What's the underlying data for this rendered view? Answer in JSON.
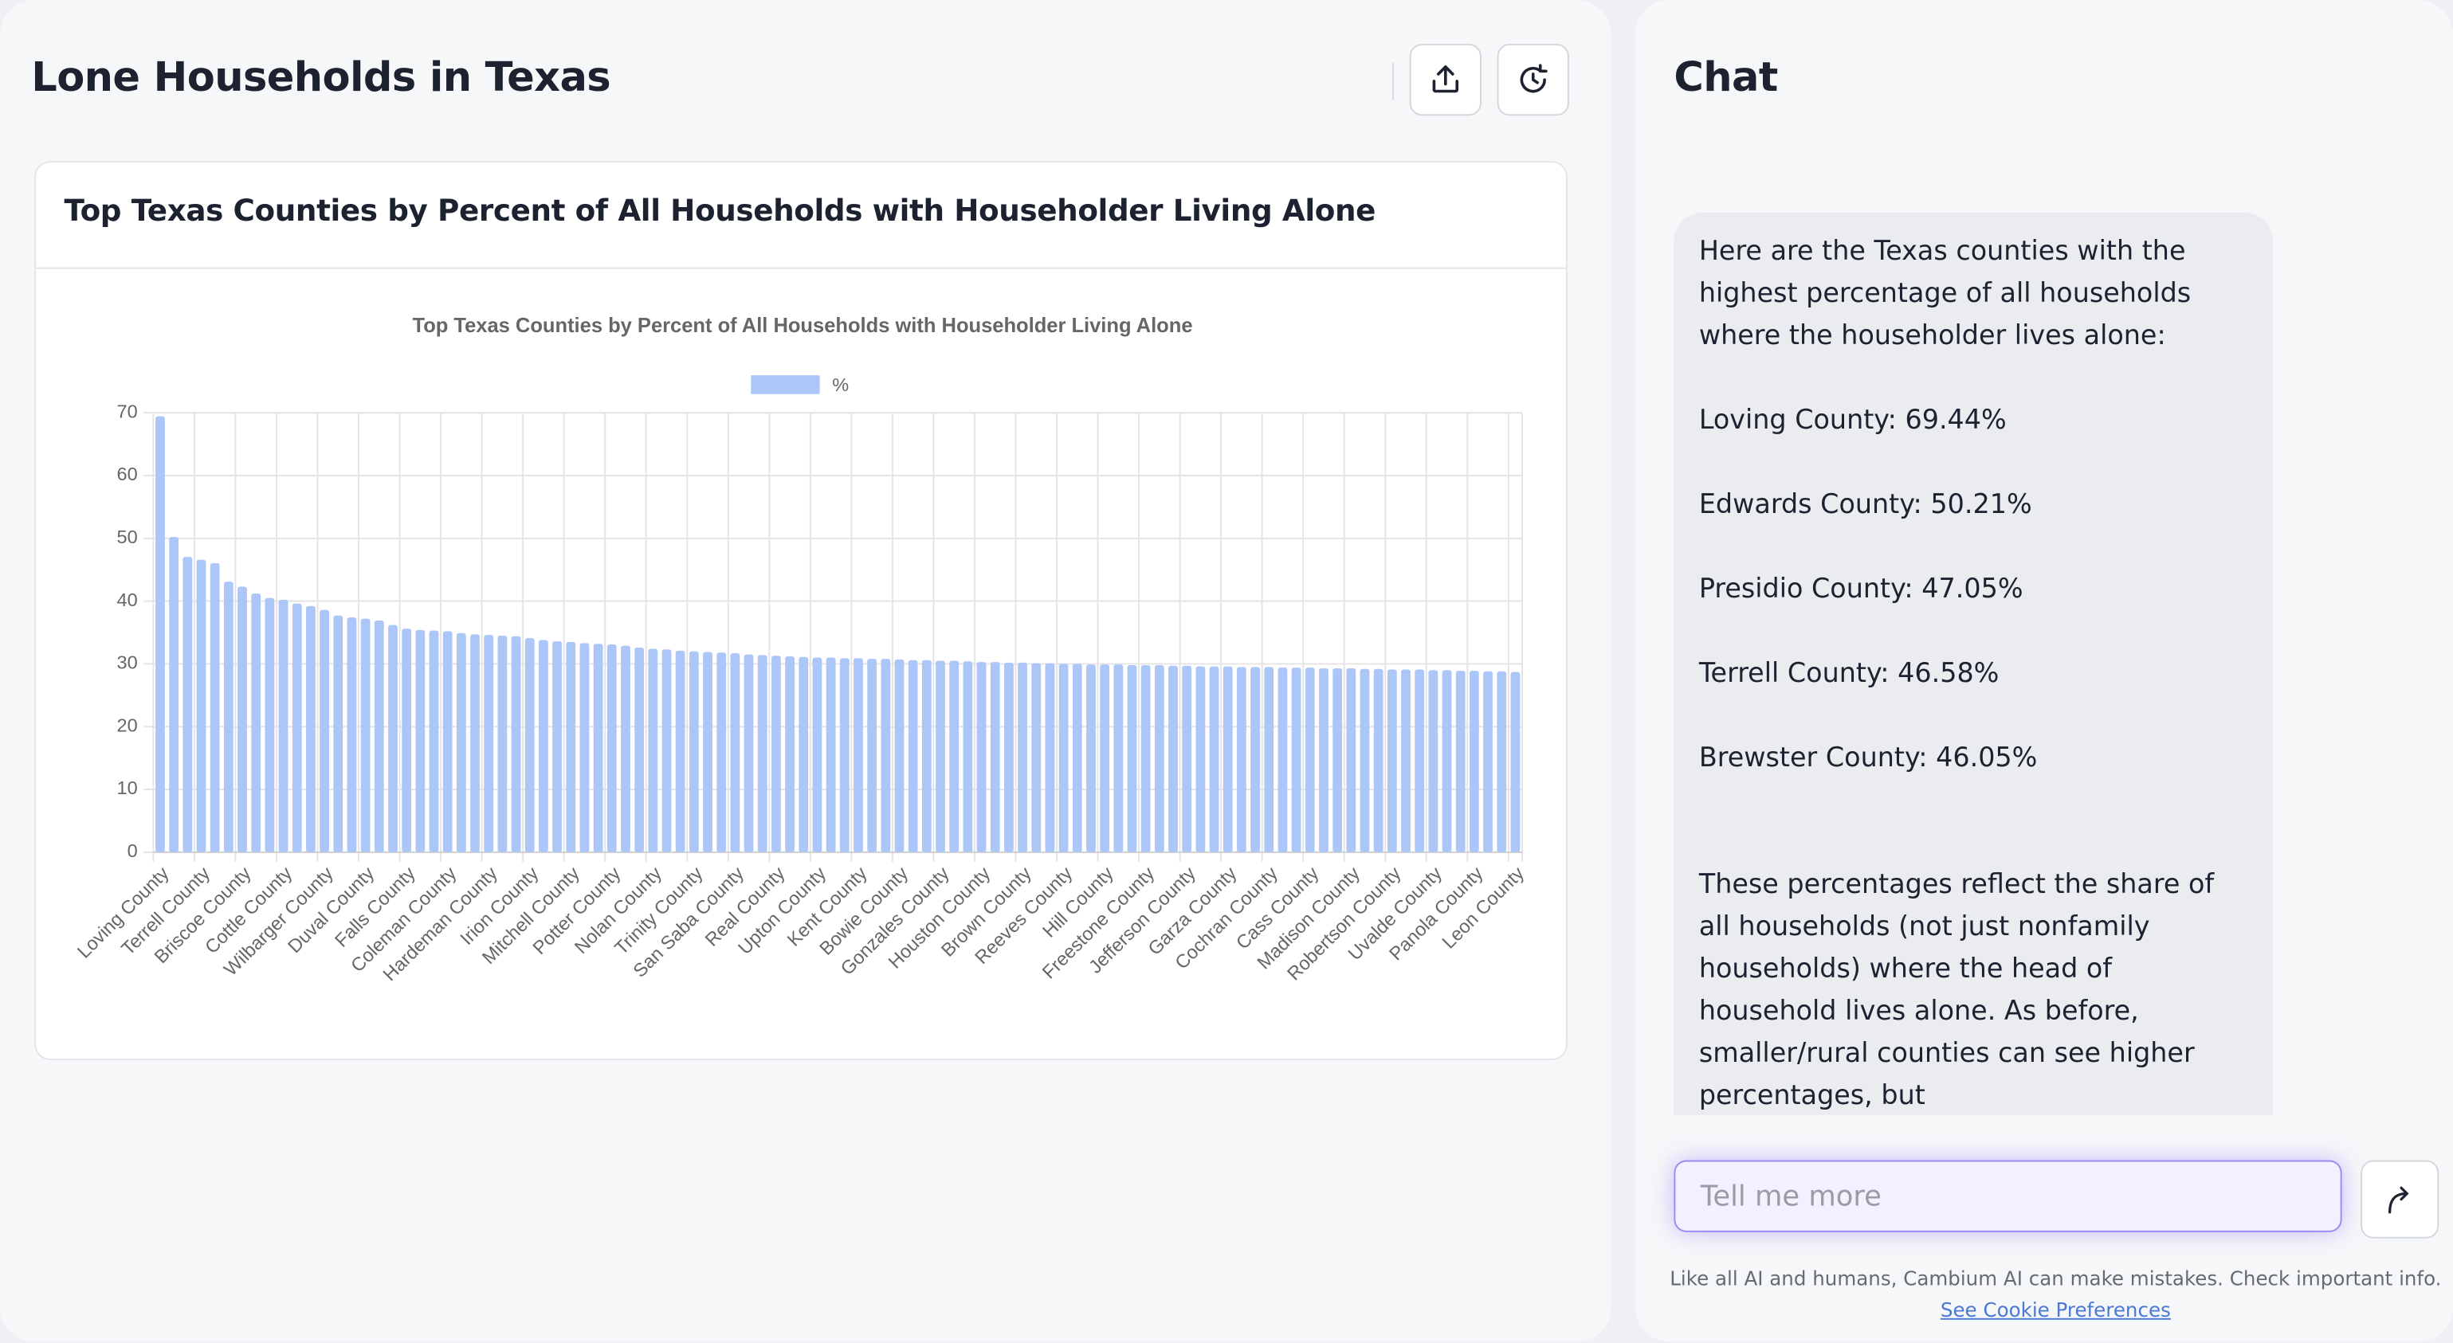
{
  "header": {
    "title": "Lone Households in Texas"
  },
  "card": {
    "title": "Top Texas Counties by Percent of All Households with Householder Living Alone"
  },
  "chart_data": {
    "type": "bar",
    "title": "Top Texas Counties by Percent of All Households with Householder Living Alone",
    "categories": [
      "Loving County",
      null,
      null,
      "Terrell County",
      null,
      null,
      "Briscoe County",
      null,
      null,
      "Cottle County",
      null,
      null,
      "Wilbarger County",
      null,
      null,
      "Duval County",
      null,
      null,
      "Falls County",
      null,
      null,
      "Coleman County",
      null,
      null,
      "Hardeman County",
      null,
      null,
      "Irion County",
      null,
      null,
      "Mitchell County",
      null,
      null,
      "Potter County",
      null,
      null,
      "Nolan County",
      null,
      null,
      "Trinity County",
      null,
      null,
      "San Saba County",
      null,
      null,
      "Real County",
      null,
      null,
      "Upton County",
      null,
      null,
      "Kent County",
      null,
      null,
      "Bowie County",
      null,
      null,
      "Gonzales County",
      null,
      null,
      "Houston County",
      null,
      null,
      "Brown County",
      null,
      null,
      "Reeves County",
      null,
      null,
      "Hill County",
      null,
      null,
      "Freestone County",
      null,
      null,
      "Jefferson County",
      null,
      null,
      "Garza County",
      null,
      null,
      "Cochran County",
      null,
      null,
      "Cass County",
      null,
      null,
      "Madison County",
      null,
      null,
      "Robertson County",
      null,
      null,
      "Uvalde County",
      null,
      null,
      "Panola County",
      null,
      null,
      "Leon County"
    ],
    "series": [
      {
        "name": "%",
        "color": "#adc6f8",
        "values": [
          69.44,
          50.21,
          47.05,
          46.58,
          46.05,
          43.1,
          42.3,
          41.2,
          40.5,
          40.2,
          39.6,
          39.2,
          38.6,
          37.7,
          37.4,
          37.2,
          36.9,
          36.2,
          35.6,
          35.4,
          35.3,
          35.2,
          34.9,
          34.7,
          34.6,
          34.5,
          34.4,
          34.1,
          33.8,
          33.6,
          33.5,
          33.3,
          33.2,
          33.1,
          32.9,
          32.6,
          32.4,
          32.3,
          32.1,
          32.0,
          31.9,
          31.8,
          31.7,
          31.5,
          31.4,
          31.3,
          31.2,
          31.1,
          31.0,
          31.0,
          30.9,
          30.9,
          30.8,
          30.8,
          30.7,
          30.6,
          30.6,
          30.5,
          30.5,
          30.4,
          30.3,
          30.3,
          30.2,
          30.2,
          30.1,
          30.1,
          30.0,
          30.0,
          29.9,
          29.9,
          29.9,
          29.8,
          29.8,
          29.8,
          29.7,
          29.7,
          29.6,
          29.6,
          29.6,
          29.5,
          29.5,
          29.5,
          29.4,
          29.4,
          29.4,
          29.3,
          29.3,
          29.3,
          29.2,
          29.2,
          29.1,
          29.1,
          29.1,
          29.0,
          29.0,
          28.9,
          28.9,
          28.8,
          28.8,
          28.7
        ]
      }
    ],
    "ylim": [
      0,
      70
    ],
    "yticks": [
      0,
      10,
      20,
      30,
      40,
      50,
      60,
      70
    ],
    "grid": true,
    "legend": "top"
  },
  "chat": {
    "title": "Chat",
    "intro": "Here are the Texas counties with the highest percentage of all households where the householder lives alone:",
    "items": [
      "Loving County: 69.44%",
      "Edwards County: 50.21%",
      "Presidio County: 47.05%",
      "Terrell County: 46.58%",
      "Brewster County: 46.05%"
    ],
    "closing": "These percentages reflect the share of all households (not just nonfamily households) where the head of household lives alone. As before, smaller/rural counties can see higher percentages, but"
  },
  "input": {
    "placeholder": "Tell me more"
  },
  "footer": {
    "disclaimer": "Like all AI and humans, Cambium AI can make mistakes. Check important info.",
    "link": "See Cookie Preferences"
  }
}
